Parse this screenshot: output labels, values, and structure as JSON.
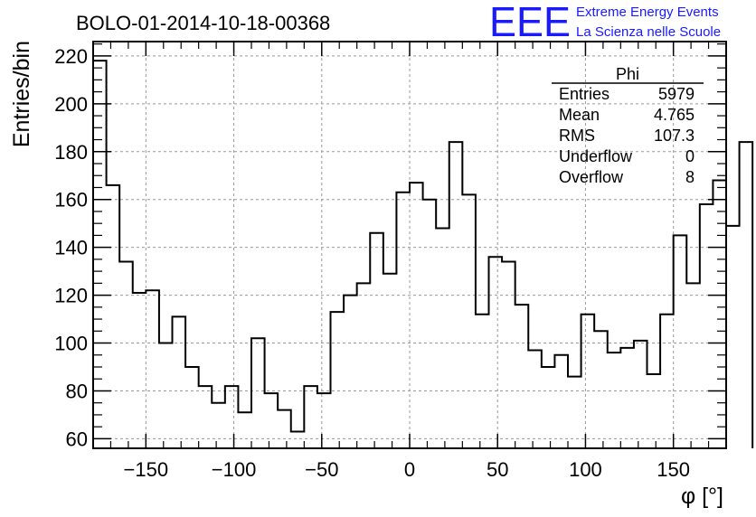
{
  "header": {
    "title": "BOLO-01-2014-10-18-00368",
    "logo_text": "EEE",
    "logo_line1": "Extreme Energy Events",
    "logo_line2": "La Scienza nelle Scuole"
  },
  "stats": {
    "title": "Phi",
    "rows": [
      {
        "label": "Entries",
        "value": "5979"
      },
      {
        "label": "Mean",
        "value": "4.765"
      },
      {
        "label": "RMS",
        "value": "107.3"
      },
      {
        "label": "Underflow",
        "value": "0"
      },
      {
        "label": "Overflow",
        "value": "8"
      }
    ]
  },
  "chart_data": {
    "type": "histogram",
    "title": "BOLO-01-2014-10-18-00368",
    "xlabel": "φ [°]",
    "ylabel": "Entries/bin",
    "xlim": [
      -180,
      180
    ],
    "ylim": [
      56,
      226
    ],
    "bin_width": 7.5,
    "bin_start": -180,
    "values": [
      218,
      166,
      134,
      121,
      122,
      100,
      111,
      90,
      82,
      75,
      82,
      71,
      102,
      79,
      72,
      63,
      82,
      79,
      113,
      120,
      125,
      146,
      129,
      163,
      167,
      160,
      148,
      184,
      162,
      112,
      136,
      134,
      116,
      97,
      90,
      95,
      86,
      112,
      105,
      96,
      98,
      101,
      87,
      112,
      145,
      125,
      158,
      168,
      149,
      184
    ],
    "x_ticks": [
      -150,
      -100,
      -50,
      0,
      50,
      100,
      150
    ],
    "x_tick_labels": [
      "−150",
      "−100",
      "−50",
      "0",
      "50",
      "100",
      "150"
    ],
    "y_ticks": [
      60,
      80,
      100,
      120,
      140,
      160,
      180,
      200,
      220
    ],
    "y_tick_labels": [
      "60",
      "80",
      "100",
      "120",
      "140",
      "160",
      "180",
      "200",
      "220"
    ],
    "grid": true,
    "color": "#000000"
  }
}
